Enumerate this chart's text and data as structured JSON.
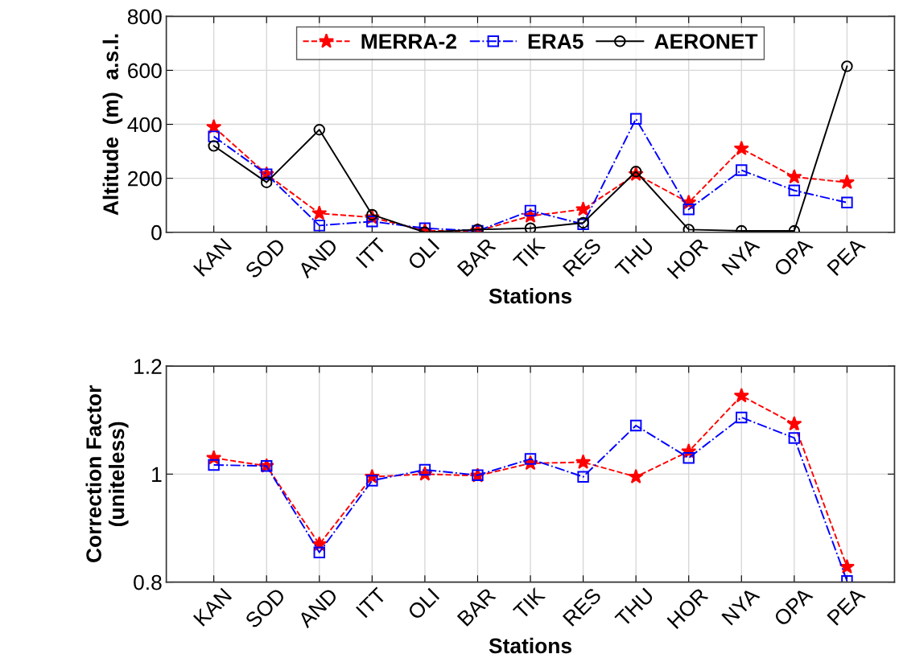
{
  "chart_data": [
    {
      "type": "line",
      "xlabel": "Stations",
      "ylabel": "Altitude  (m)  a.s.l.",
      "categories": [
        "KAN",
        "SOD",
        "AND",
        "ITT",
        "OLI",
        "BAR",
        "TIK",
        "RES",
        "THU",
        "HOR",
        "NYA",
        "OPA",
        "PEA"
      ],
      "ylim": [
        0,
        800
      ],
      "yticks": [
        0,
        200,
        400,
        600,
        800
      ],
      "grid": true,
      "legend": "top",
      "series": [
        {
          "name": "MERRA-2",
          "color": "#ff0000",
          "marker": "star",
          "line_style": "dashed",
          "values": [
            390,
            215,
            70,
            55,
            5,
            5,
            60,
            85,
            215,
            110,
            310,
            205,
            185
          ]
        },
        {
          "name": "ERA5",
          "color": "#0000ff",
          "marker": "square",
          "line_style": "dashdot",
          "values": [
            355,
            215,
            25,
            40,
            15,
            5,
            80,
            30,
            420,
            85,
            230,
            155,
            110
          ]
        },
        {
          "name": "AERONET",
          "color": "#000000",
          "marker": "circle",
          "line_style": "solid",
          "values": [
            320,
            185,
            380,
            65,
            0,
            10,
            15,
            35,
            225,
            10,
            5,
            5,
            615
          ]
        }
      ]
    },
    {
      "type": "line",
      "xlabel": "Stations",
      "ylabel": "Correction Factor\n(uniteless)",
      "categories": [
        "KAN",
        "SOD",
        "AND",
        "ITT",
        "OLI",
        "BAR",
        "TIK",
        "RES",
        "THU",
        "HOR",
        "NYA",
        "OPA",
        "PEA"
      ],
      "ylim": [
        0.8,
        1.2
      ],
      "yticks": [
        0.8,
        1,
        1.2
      ],
      "grid": true,
      "series": [
        {
          "color": "#ff0000",
          "marker": "star",
          "line_style": "dashed",
          "values": [
            1.03,
            1.015,
            0.87,
            0.995,
            1.0,
            0.997,
            1.02,
            1.022,
            0.995,
            1.042,
            1.145,
            1.093,
            0.828
          ]
        },
        {
          "color": "#0000ff",
          "marker": "square",
          "line_style": "dashdot",
          "values": [
            1.017,
            1.015,
            0.855,
            0.988,
            1.008,
            0.998,
            1.028,
            0.995,
            1.09,
            1.03,
            1.105,
            1.067,
            0.802
          ]
        }
      ]
    }
  ]
}
